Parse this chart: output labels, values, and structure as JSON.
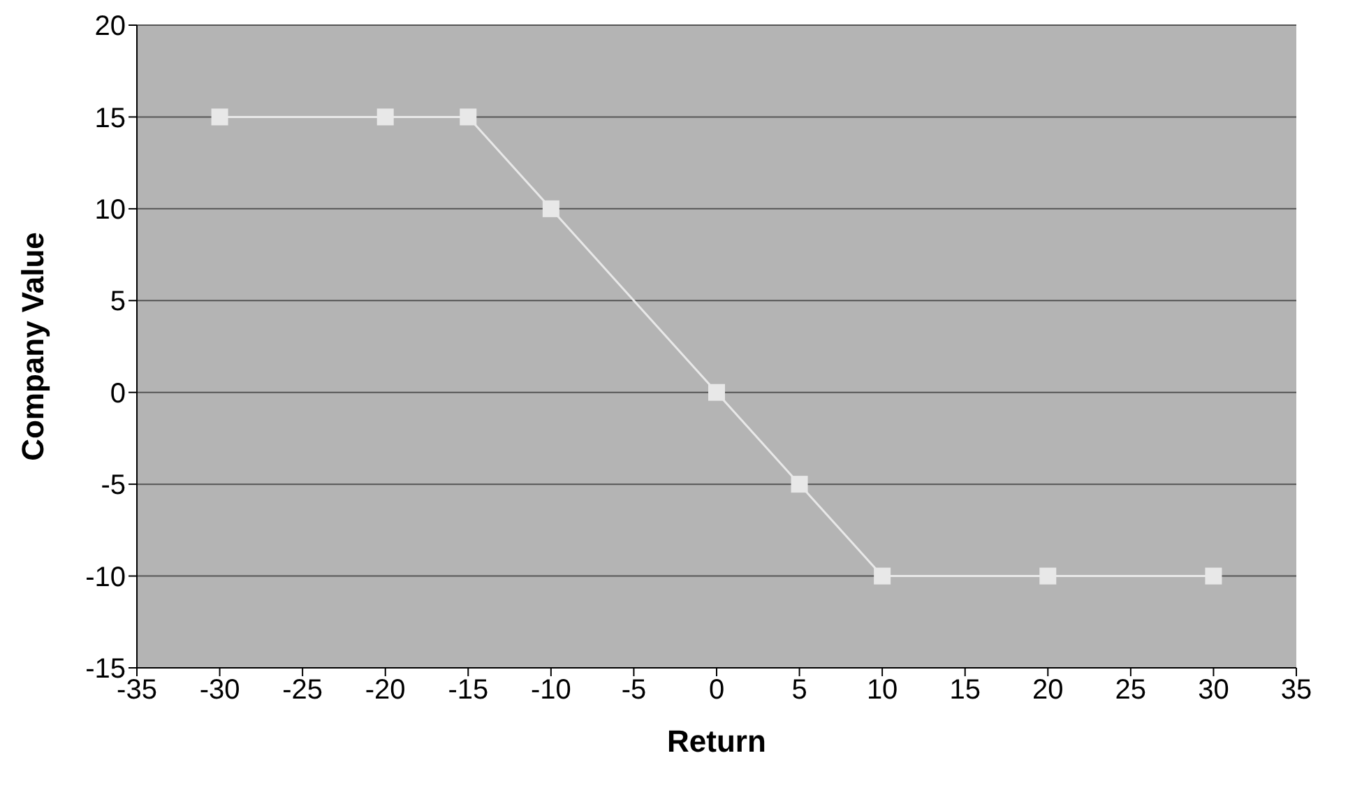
{
  "chart_data": {
    "type": "line",
    "xlabel": "Return",
    "ylabel": "Company Value",
    "x": [
      -30,
      -20,
      -15,
      -10,
      0,
      5,
      10,
      20,
      30
    ],
    "series": [
      {
        "color": "#e8e8e8",
        "values": [
          15,
          15,
          15,
          10,
          0,
          -5,
          -10,
          -10,
          -10
        ]
      }
    ],
    "xlim": [
      -35,
      35
    ],
    "xticks": [
      -35,
      -30,
      -25,
      -20,
      -15,
      -10,
      -5,
      0,
      5,
      10,
      15,
      20,
      25,
      30,
      35
    ],
    "ylim": [
      -15,
      20
    ],
    "yticks": [
      -15,
      -10,
      -5,
      0,
      5,
      10,
      15,
      20
    ],
    "grid": "y",
    "marker": "square",
    "line_style": "solid",
    "legend": false
  }
}
